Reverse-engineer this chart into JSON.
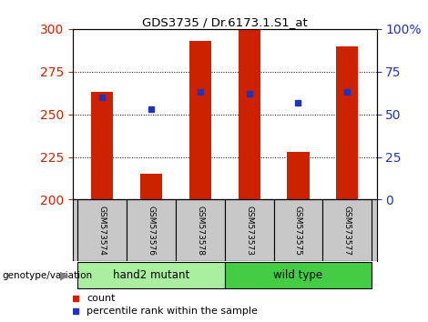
{
  "title": "GDS3735 / Dr.6173.1.S1_at",
  "samples": [
    "GSM573574",
    "GSM573576",
    "GSM573578",
    "GSM573573",
    "GSM573575",
    "GSM573577"
  ],
  "counts": [
    263,
    215,
    293,
    300,
    228,
    290
  ],
  "percentiles": [
    60,
    53,
    63,
    62,
    57,
    63
  ],
  "ylim_left": [
    200,
    300
  ],
  "ylim_right": [
    0,
    100
  ],
  "yticks_left": [
    200,
    225,
    250,
    275,
    300
  ],
  "yticks_right": [
    0,
    25,
    50,
    75,
    100
  ],
  "yticklabels_right": [
    "0",
    "25",
    "50",
    "75",
    "100%"
  ],
  "bar_color": "#cc2200",
  "dot_color": "#2233bb",
  "bar_width": 0.45,
  "groups": [
    {
      "label": "hand2 mutant",
      "indices": [
        0,
        1,
        2
      ],
      "color": "#aaeea0"
    },
    {
      "label": "wild type",
      "indices": [
        3,
        4,
        5
      ],
      "color": "#44cc44"
    }
  ],
  "group_label": "genotype/variation",
  "legend_count_label": "count",
  "legend_percentile_label": "percentile rank within the sample",
  "tick_area_bg": "#c8c8c8",
  "left_tick_color": "#cc2200",
  "right_tick_color": "#2233bb",
  "fig_width": 4.7,
  "fig_height": 3.54,
  "dpi": 100
}
